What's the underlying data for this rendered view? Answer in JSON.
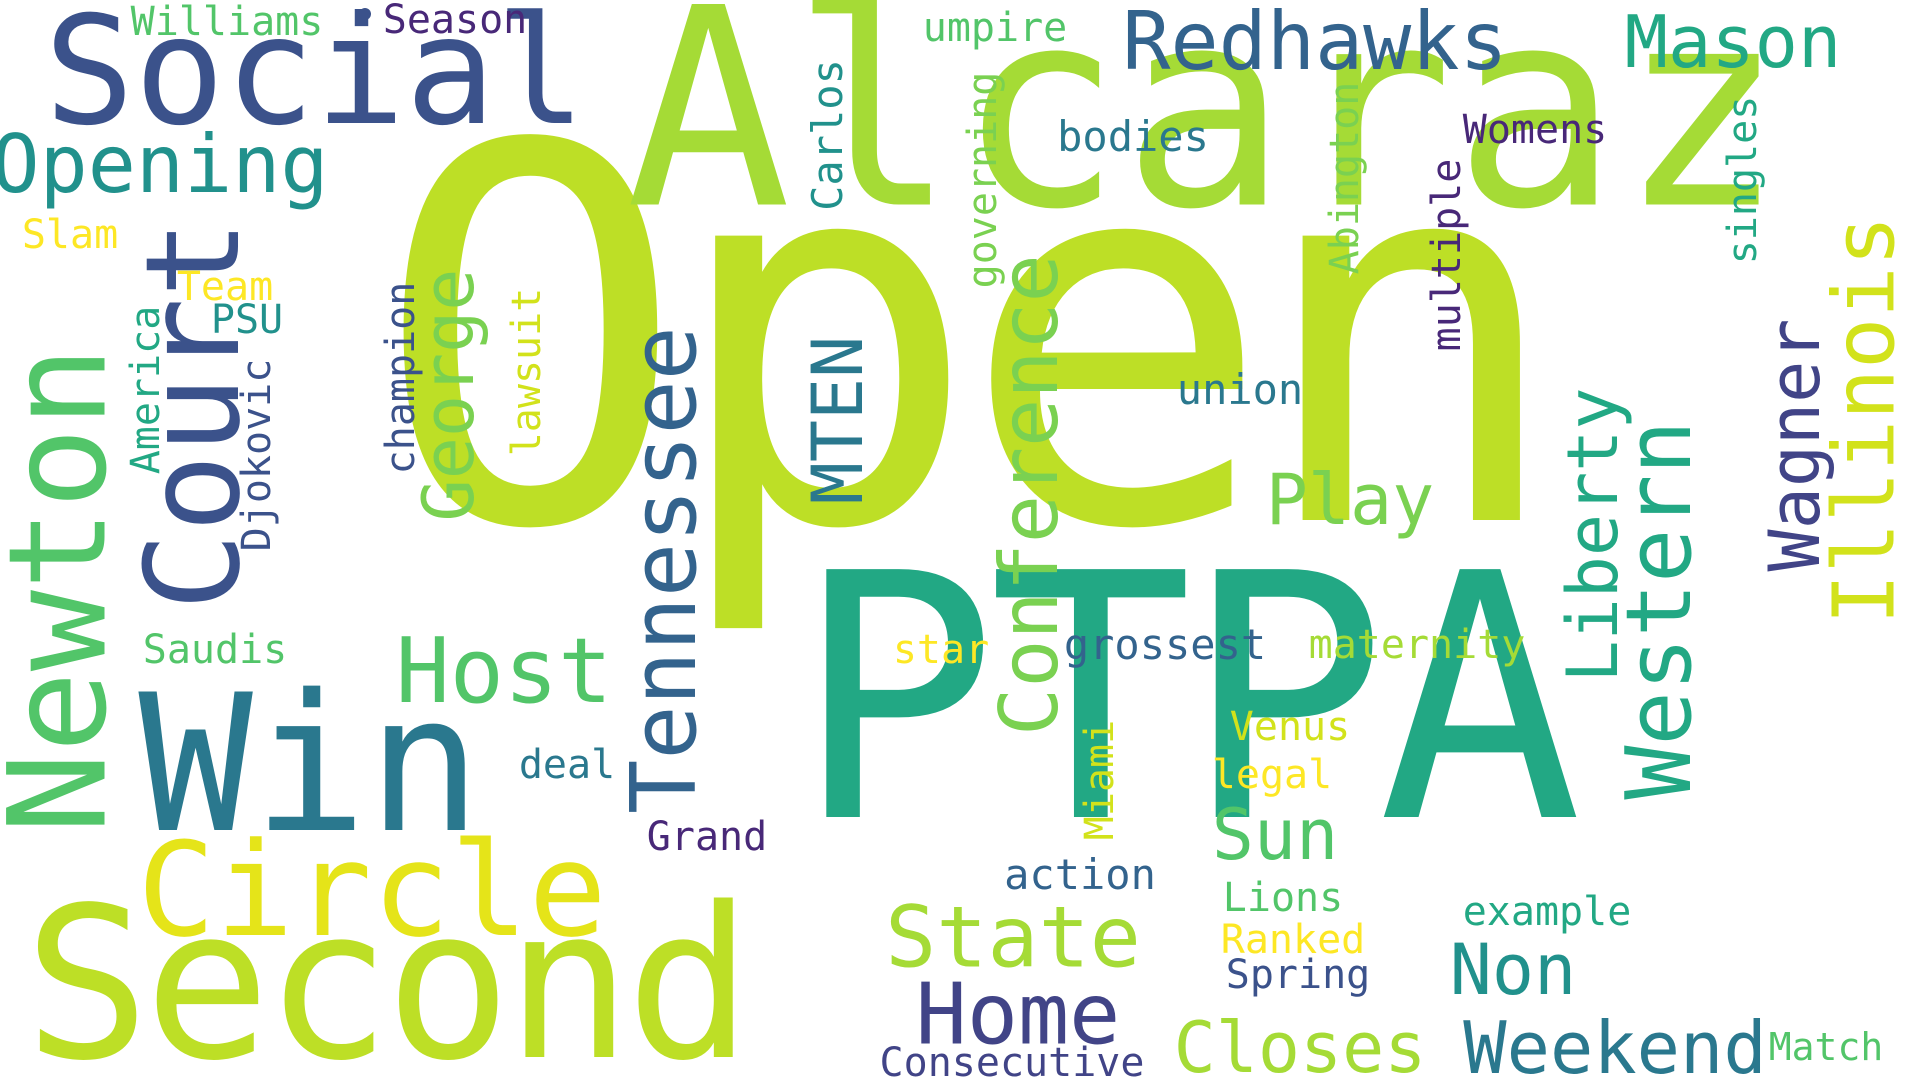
{
  "palette": {
    "background": "#ffffff",
    "lime": "#bddf26",
    "yellowgreen": "#a5db36",
    "green": "#7ad151",
    "mint": "#52c569",
    "teal": "#22a884",
    "seagreen": "#1f988b",
    "cyan": "#21918c",
    "steel": "#2a788e",
    "slate": "#33638d",
    "indigo": "#3b528b",
    "deep": "#414487",
    "violet": "#482878",
    "plum": "#440154",
    "yellow": "#e5e419",
    "gold": "#fde725",
    "olive": "#d2e21b"
  },
  "words": {
    "open": "Open",
    "alcaraz": "Alcaraz",
    "ptpa": "PTPA",
    "second": "Second",
    "social": "Social",
    "win": "Win",
    "newton": "Newton",
    "court": "Court",
    "circle": "Circle",
    "opening": "Opening",
    "redhawks": "Redhawks",
    "mason": "Mason",
    "illinois": "Illinois",
    "tennessee": "Tennessee",
    "western": "Western",
    "host": "Host",
    "conference": "Conference",
    "state": "State",
    "home": "Home",
    "closes": "Closes",
    "weekend": "Weekend",
    "non": "Non",
    "sun": "Sun",
    "play": "Play",
    "liberty": "Liberty",
    "wagner": "Wagner",
    "george": "George",
    "mten": "MTEN",
    "williams": "Williams",
    "season": "Season",
    "umpire": "umpire",
    "carlos": "Carlos",
    "bodies": "bodies",
    "governing": "governing",
    "abington": "Abington",
    "womens": "Womens",
    "singles": "singles",
    "multiple": "multiple",
    "slam": "Slam",
    "team": "Team",
    "psu": "PSU",
    "america": "America",
    "djokovic": "Djokovic",
    "champion": "champion",
    "lawsuit": "lawsuit",
    "union": "union",
    "saudis": "Saudis",
    "star": "star",
    "grossest": "grossest",
    "maternity": "maternity",
    "venus": "Venus",
    "legal": "legal",
    "deal": "deal",
    "grand": "Grand",
    "miami": "Miami",
    "action": "action",
    "lions": "Lions",
    "example": "example",
    "ranked": "Ranked",
    "spring": "Spring",
    "consecutive": "Consecutive",
    "match": "Match"
  }
}
